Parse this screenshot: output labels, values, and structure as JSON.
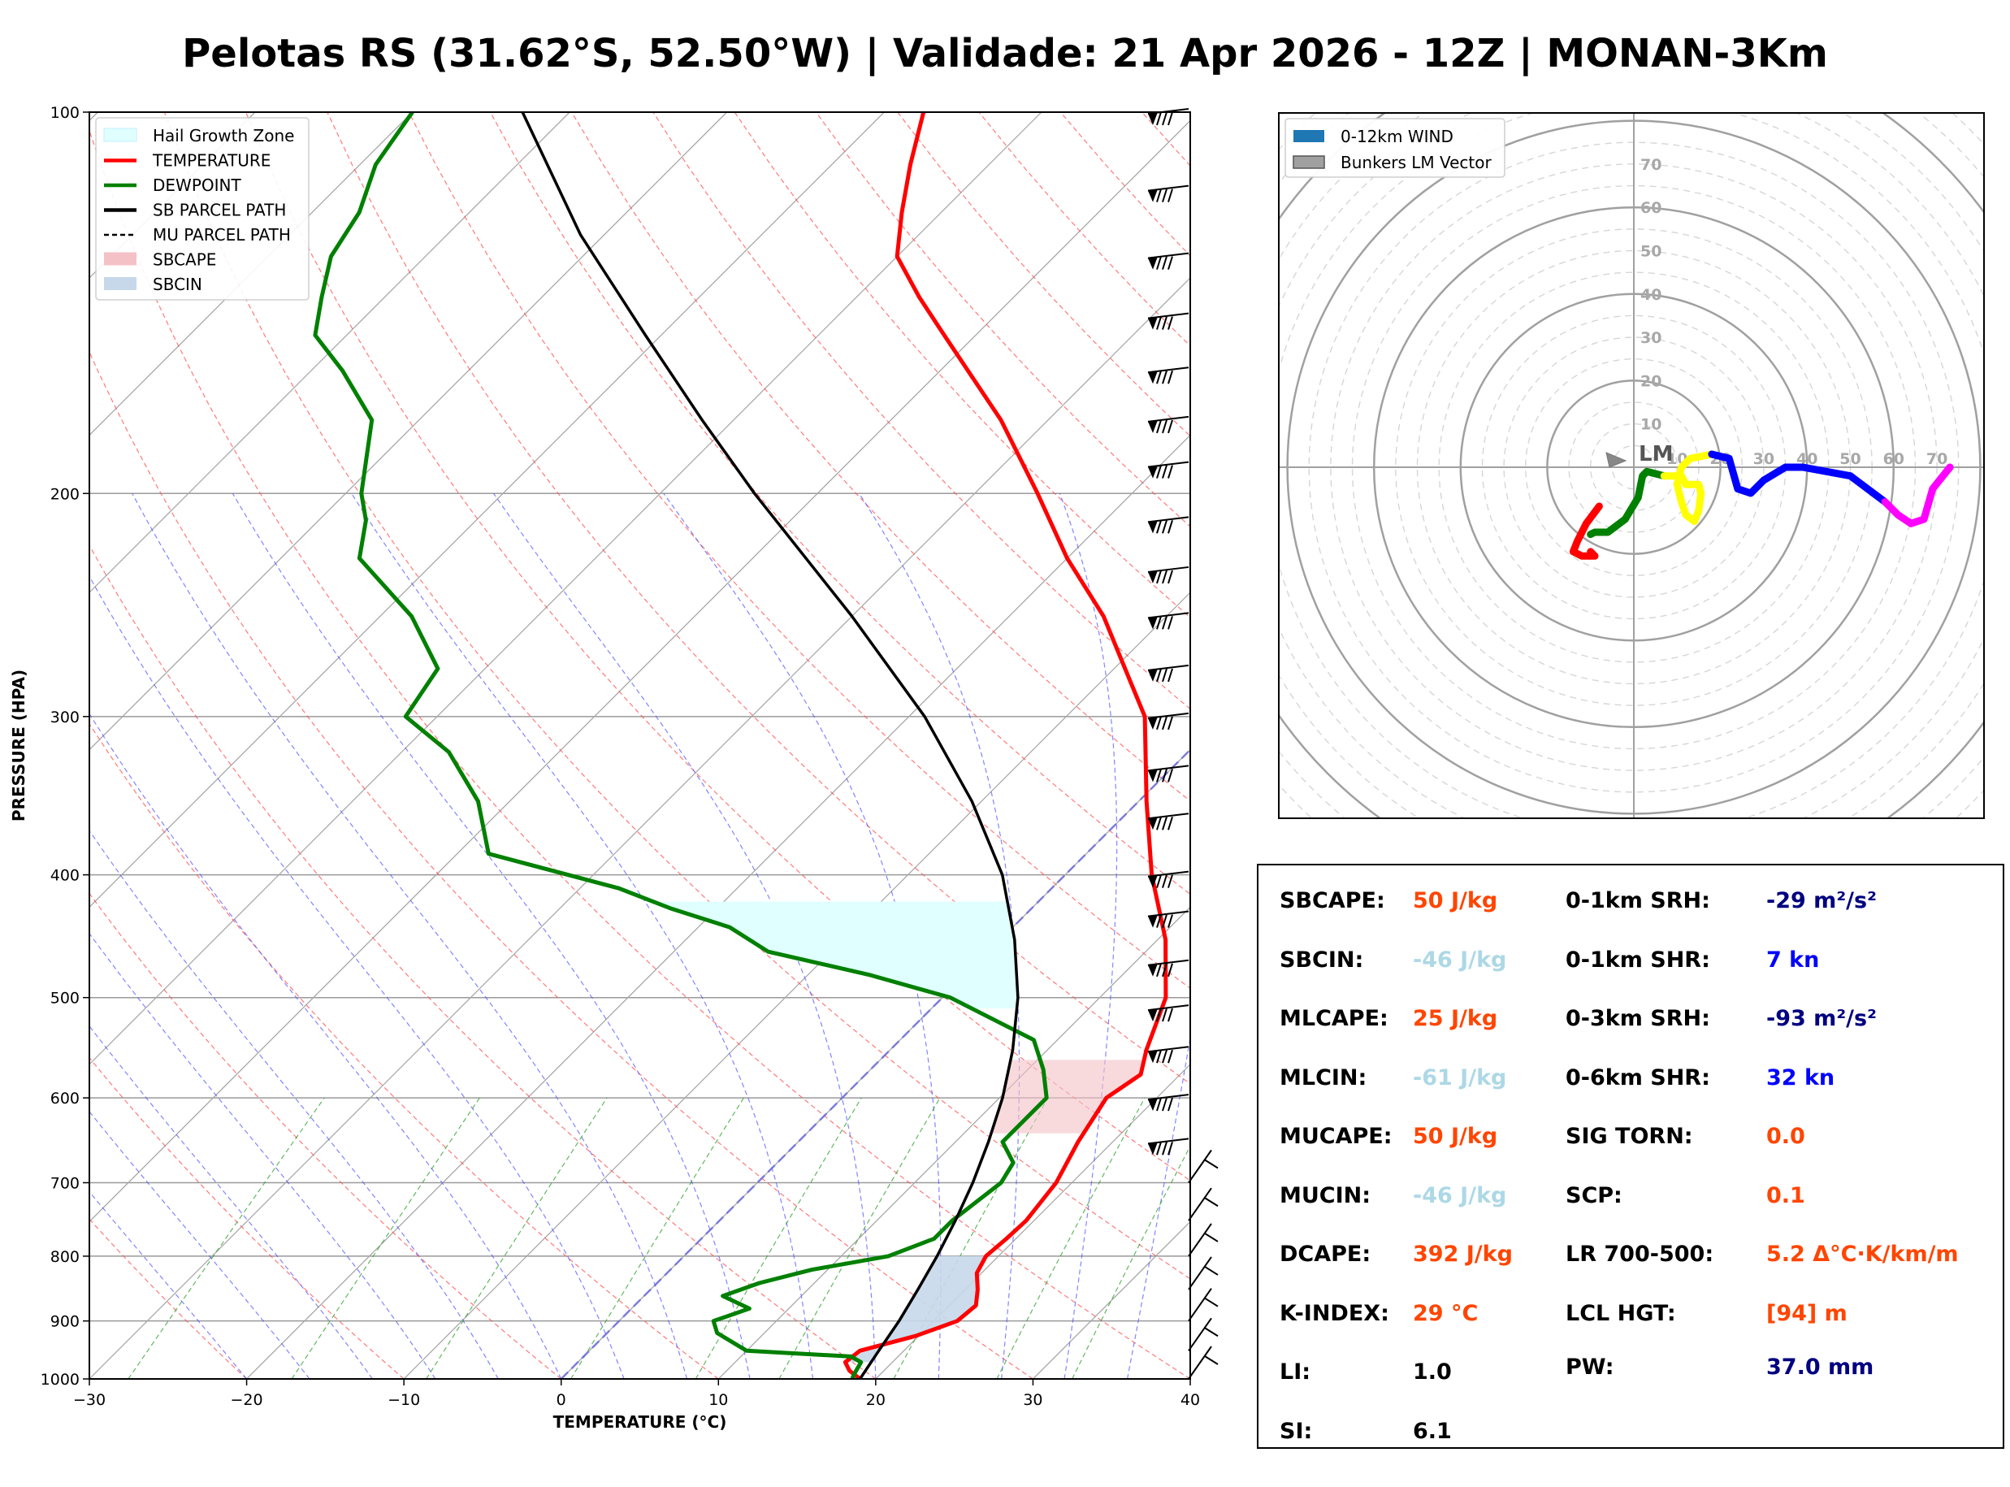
{
  "title": "Pelotas RS (31.62°S, 52.50°W) | Validade: 21 Apr 2026 - 12Z | MONAN-3Km",
  "chart_data": [
    {
      "type": "line",
      "chart": "skew-t log-p",
      "xlabel": "TEMPERATURE (°C)",
      "ylabel": "PRESSURE (HPA)",
      "xlim": [
        -30,
        40
      ],
      "ylim": [
        1000,
        100
      ],
      "y_scale": "log",
      "x_ticks": [
        "−30",
        "−20",
        "−10",
        "0",
        "10",
        "20",
        "30",
        "40"
      ],
      "x_tick_values": [
        -30,
        -20,
        -10,
        0,
        10,
        20,
        30,
        40
      ],
      "y_ticks": [
        "1000",
        "900",
        "800",
        "700",
        "600",
        "500",
        "400",
        "300",
        "200",
        "100"
      ],
      "y_tick_values": [
        1000,
        900,
        800,
        700,
        600,
        500,
        400,
        300,
        200,
        100
      ],
      "legend_position": "top-left",
      "legend": [
        {
          "label": "Hail Growth Zone",
          "color": "#e0ffff",
          "kind": "patch"
        },
        {
          "label": "TEMPERATURE",
          "color": "#ff0000",
          "kind": "line"
        },
        {
          "label": "DEWPOINT",
          "color": "#008000",
          "kind": "line"
        },
        {
          "label": "SB PARCEL PATH",
          "color": "#000000",
          "kind": "line"
        },
        {
          "label": "MU PARCEL PATH",
          "color": "#000000",
          "kind": "dashed"
        },
        {
          "label": "SBCAPE",
          "color": "#f4c2c6",
          "kind": "patch"
        },
        {
          "label": "SBCIN",
          "color": "#c6d8ea",
          "kind": "patch"
        }
      ],
      "series": [
        {
          "name": "TEMPERATURE",
          "color": "#ff0000",
          "points": [
            [
              1000,
              19.0
            ],
            [
              985,
              17.8
            ],
            [
              970,
              17.0
            ],
            [
              950,
              17.2
            ],
            [
              925,
              19.8
            ],
            [
              900,
              21.5
            ],
            [
              875,
              21.7
            ],
            [
              850,
              20.8
            ],
            [
              825,
              19.7
            ],
            [
              800,
              19.2
            ],
            [
              775,
              19.4
            ],
            [
              750,
              19.5
            ],
            [
              700,
              19.0
            ],
            [
              650,
              17.8
            ],
            [
              600,
              16.8
            ],
            [
              575,
              17.5
            ],
            [
              550,
              16.3
            ],
            [
              500,
              14.2
            ],
            [
              450,
              10.5
            ],
            [
              400,
              5.5
            ],
            [
              350,
              0.5
            ],
            [
              300,
              -5.0
            ],
            [
              275,
              -9.3
            ],
            [
              250,
              -14.0
            ],
            [
              225,
              -20.0
            ],
            [
              200,
              -26.0
            ],
            [
              175,
              -33.0
            ],
            [
              150,
              -42.0
            ],
            [
              140,
              -46.0
            ],
            [
              130,
              -50.0
            ],
            [
              120,
              -52.5
            ],
            [
              110,
              -55.0
            ],
            [
              100,
              -57.5
            ]
          ]
        },
        {
          "name": "DEWPOINT",
          "color": "#008000",
          "points": [
            [
              1000,
              18.5
            ],
            [
              990,
              18.3
            ],
            [
              970,
              18.0
            ],
            [
              960,
              17.0
            ],
            [
              950,
              10.0
            ],
            [
              920,
              7.0
            ],
            [
              900,
              6.0
            ],
            [
              880,
              7.5
            ],
            [
              860,
              5.0
            ],
            [
              840,
              6.5
            ],
            [
              820,
              9.0
            ],
            [
              800,
              13.0
            ],
            [
              775,
              14.8
            ],
            [
              750,
              14.8
            ],
            [
              700,
              15.5
            ],
            [
              675,
              15.0
            ],
            [
              650,
              13.0
            ],
            [
              600,
              13.0
            ],
            [
              570,
              11.0
            ],
            [
              540,
              8.5
            ],
            [
              500,
              0.5
            ],
            [
              480,
              -6.0
            ],
            [
              460,
              -14.0
            ],
            [
              440,
              -18.0
            ],
            [
              425,
              -23.0
            ],
            [
              410,
              -27.5
            ],
            [
              385,
              -38.0
            ],
            [
              350,
              -42.0
            ],
            [
              320,
              -47.0
            ],
            [
              300,
              -52.0
            ],
            [
              275,
              -53.0
            ],
            [
              250,
              -58.0
            ],
            [
              225,
              -65.0
            ],
            [
              210,
              -67.0
            ],
            [
              200,
              -69.0
            ],
            [
              175,
              -73.0
            ],
            [
              160,
              -78.0
            ],
            [
              150,
              -82.0
            ],
            [
              140,
              -84.0
            ],
            [
              130,
              -86.0
            ],
            [
              120,
              -87.0
            ],
            [
              110,
              -89.0
            ],
            [
              100,
              -90.0
            ]
          ]
        },
        {
          "name": "SB PARCEL PATH",
          "color": "#000000",
          "points": [
            [
              1000,
              19.0
            ],
            [
              950,
              18.4
            ],
            [
              900,
              17.8
            ],
            [
              850,
              17.0
            ],
            [
              800,
              16.1
            ],
            [
              750,
              15.0
            ],
            [
              700,
              13.7
            ],
            [
              650,
              12.1
            ],
            [
              600,
              10.2
            ],
            [
              550,
              7.8
            ],
            [
              500,
              4.8
            ],
            [
              450,
              0.9
            ],
            [
              400,
              -4.0
            ],
            [
              350,
              -10.6
            ],
            [
              300,
              -19.0
            ],
            [
              250,
              -30.0
            ],
            [
              200,
              -44.0
            ],
            [
              175,
              -52.0
            ],
            [
              150,
              -61.0
            ],
            [
              125,
              -71.5
            ],
            [
              100,
              -83.0
            ]
          ]
        }
      ],
      "hail_growth_zone_hpa": [
        420,
        510
      ]
    },
    {
      "type": "line",
      "chart": "hodograph",
      "legend_position": "top-left",
      "legend": [
        {
          "label": "0-12km WIND",
          "color": "#1f77b4"
        },
        {
          "label": "Bunkers LM Vector",
          "color": "#a0a0a0"
        }
      ],
      "ring_labels": [
        "10",
        "20",
        "30",
        "40",
        "50",
        "60",
        "70"
      ],
      "ring_values": [
        10,
        20,
        30,
        40,
        50,
        60,
        70
      ],
      "lm_label": "LM",
      "lm_vector": [
        -3,
        1.5
      ],
      "segments": [
        {
          "color": "#ff0000",
          "points": [
            [
              -8,
              -9
            ],
            [
              -11,
              -13
            ],
            [
              -13,
              -17
            ],
            [
              -14,
              -19.5
            ],
            [
              -12,
              -20.5
            ],
            [
              -9,
              -20.5
            ],
            [
              -10,
              -19.5
            ]
          ]
        },
        {
          "color": "#008000",
          "points": [
            [
              -10,
              -15.5
            ],
            [
              -9,
              -15
            ],
            [
              -6,
              -15
            ],
            [
              -2,
              -12
            ],
            [
              1,
              -7
            ],
            [
              2,
              -2
            ],
            [
              3,
              -1
            ],
            [
              7,
              -2
            ]
          ]
        },
        {
          "color": "#ffff00",
          "points": [
            [
              7,
              -2
            ],
            [
              11,
              -2
            ],
            [
              12,
              -4
            ],
            [
              15,
              -4
            ],
            [
              15.5,
              -6
            ],
            [
              15,
              -10
            ],
            [
              14,
              -12.5
            ],
            [
              12,
              -11
            ],
            [
              11,
              -8
            ],
            [
              10,
              -4
            ],
            [
              11,
              0
            ],
            [
              13,
              2
            ],
            [
              18,
              3
            ]
          ]
        },
        {
          "color": "#0000ff",
          "points": [
            [
              18,
              3
            ],
            [
              22,
              2
            ],
            [
              24,
              -5
            ],
            [
              27,
              -6
            ],
            [
              30,
              -3
            ],
            [
              35,
              0
            ],
            [
              39,
              0
            ],
            [
              50,
              -2
            ],
            [
              58,
              -8
            ]
          ]
        },
        {
          "color": "#ff00ff",
          "points": [
            [
              58,
              -8
            ],
            [
              61,
              -11
            ],
            [
              64,
              -13
            ],
            [
              67,
              -12
            ],
            [
              69,
              -5
            ],
            [
              73,
              0
            ]
          ]
        }
      ]
    }
  ],
  "wind_barb_levels_hpa": [
    100,
    115,
    130,
    145,
    160,
    175,
    190,
    210,
    230,
    250,
    275,
    300,
    330,
    360,
    400,
    430,
    470,
    510,
    550,
    600,
    650,
    700,
    750,
    800,
    850,
    900,
    950,
    1000
  ],
  "parameters": [
    {
      "label": "SBCAPE:",
      "value": "50 J/kg",
      "color": "#ff4500"
    },
    {
      "label": "SBCIN:",
      "value": "-46 J/kg",
      "color": "#add8e6"
    },
    {
      "label": "MLCAPE:",
      "value": "25 J/kg",
      "color": "#ff4500"
    },
    {
      "label": "MLCIN:",
      "value": "-61 J/kg",
      "color": "#add8e6"
    },
    {
      "label": "MUCAPE:",
      "value": "50 J/kg",
      "color": "#ff4500"
    },
    {
      "label": "MUCIN:",
      "value": "-46 J/kg",
      "color": "#add8e6"
    },
    {
      "label": "DCAPE:",
      "value": "392 J/kg",
      "color": "#ff4500"
    },
    {
      "label": "K-INDEX:",
      "value": "29 °C",
      "color": "#ff4500"
    },
    {
      "label": "LI:",
      "value": "1.0",
      "color": "#000000"
    },
    {
      "label": "SI:",
      "value": "6.1",
      "color": "#000000"
    },
    {
      "label": "0-1km SRH:",
      "value": "-29 m²/s²",
      "color": "#000080"
    },
    {
      "label": "0-1km SHR:",
      "value": "7 kn",
      "color": "#0000ff"
    },
    {
      "label": "0-3km SRH:",
      "value": "-93 m²/s²",
      "color": "#000080"
    },
    {
      "label": "0-6km SHR:",
      "value": "32 kn",
      "color": "#0000ff"
    },
    {
      "label": "SIG TORN:",
      "value": "0.0",
      "color": "#ff4500"
    },
    {
      "label": "SCP:",
      "value": "0.1",
      "color": "#ff4500"
    },
    {
      "label": "LR 700-500:",
      "value": "5.2 Δ°C·K/km/m",
      "color": "#ff4500"
    },
    {
      "label": "LCL HGT:",
      "value": "[94] m",
      "color": "#ff4500"
    },
    {
      "label": "PW:",
      "value": "37.0 mm",
      "color": "#000080"
    }
  ]
}
